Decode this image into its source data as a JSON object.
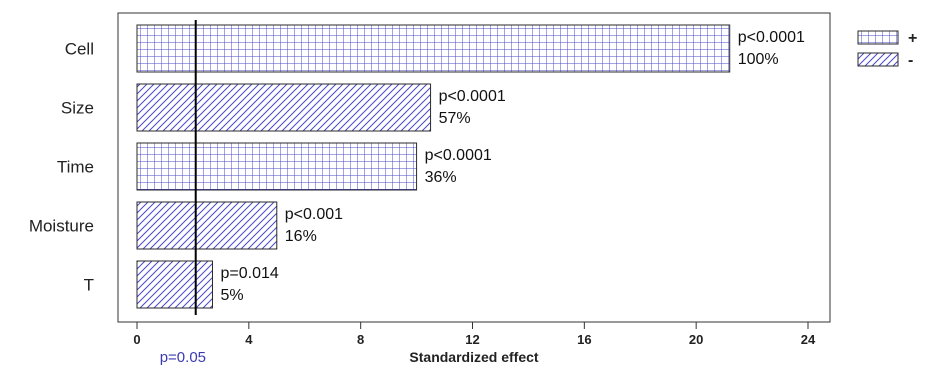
{
  "chart_data": {
    "type": "bar",
    "orientation": "horizontal",
    "categories": [
      "Cell",
      "Size",
      "Time",
      "Moisture",
      "T"
    ],
    "values": [
      21.2,
      10.5,
      10.0,
      5.0,
      2.7
    ],
    "signs": [
      "+",
      "-",
      "+",
      "-",
      "-"
    ],
    "p_labels": [
      "p<0.0001",
      "p<0.0001",
      "p<0.0001",
      "p<0.001",
      "p=0.014"
    ],
    "pct_labels": [
      "100%",
      "57%",
      "36%",
      "16%",
      "5%"
    ],
    "xlabel": "Standardized effect",
    "xlim": [
      0,
      24
    ],
    "xticks": [
      "0",
      "4",
      "8",
      "12",
      "16",
      "20",
      "24"
    ],
    "reference_line": {
      "value": 2.1,
      "label": "p=0.05",
      "label_color": "#3b3bb0"
    },
    "legend": {
      "placement": "top-right",
      "items": [
        {
          "sign": "+",
          "pattern": "grid"
        },
        {
          "sign": "-",
          "pattern": "hatch"
        }
      ]
    },
    "colors": {
      "pattern_stroke": "#4a4ac8",
      "bar_border": "#2a2a2a",
      "ref_line": "#000000"
    }
  }
}
